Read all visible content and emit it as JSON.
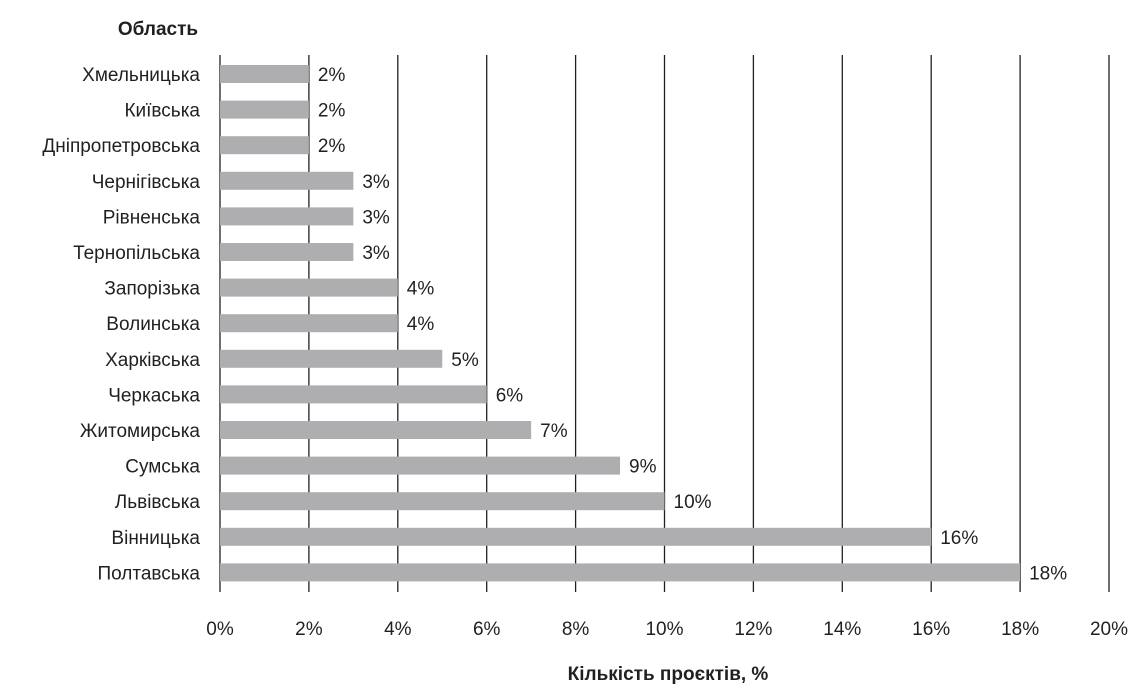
{
  "chart_data": {
    "type": "bar",
    "orientation": "horizontal",
    "categories": [
      "Хмельницька",
      "Київська",
      "Дніпропетровська",
      "Чернігівська",
      "Рівненська",
      "Тернопільська",
      "Запорізька",
      "Волинська",
      "Харківська",
      "Черкаська",
      "Житомирська",
      "Сумська",
      "Львівська",
      "Вінницька",
      "Полтавська"
    ],
    "values": [
      2,
      2,
      2,
      3,
      3,
      3,
      4,
      4,
      5,
      6,
      7,
      9,
      10,
      16,
      18
    ],
    "data_labels": [
      "2%",
      "2%",
      "2%",
      "3%",
      "3%",
      "3%",
      "4%",
      "4%",
      "5%",
      "6%",
      "7%",
      "9%",
      "10%",
      "16%",
      "18%"
    ],
    "xlabel": "Кількість проєктів, %",
    "ylabel": "Область",
    "xlim": [
      0,
      20
    ],
    "xticks": [
      0,
      2,
      4,
      6,
      8,
      10,
      12,
      14,
      16,
      18,
      20
    ],
    "xtick_labels": [
      "0%",
      "2%",
      "4%",
      "6%",
      "8%",
      "10%",
      "12%",
      "14%",
      "16%",
      "18%",
      "20%"
    ],
    "grid": "vertical",
    "legend": "none",
    "bar_color": "#aeaeb0"
  }
}
